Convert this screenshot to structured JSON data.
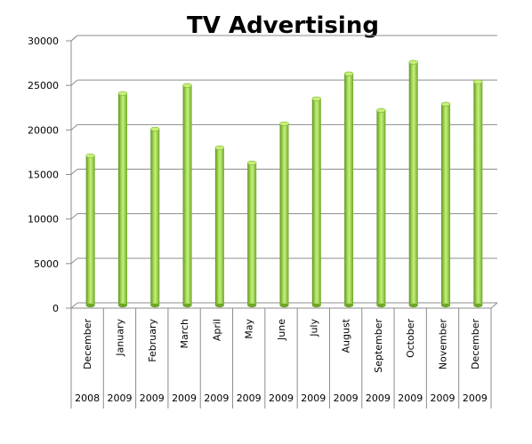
{
  "chart_data": {
    "type": "bar",
    "title": "TV Advertising",
    "categories": [
      "December",
      "January",
      "February",
      "March",
      "April",
      "May",
      "June",
      "July",
      "August",
      "September",
      "October",
      "November",
      "December"
    ],
    "years": [
      "2008",
      "2009",
      "2009",
      "2009",
      "2009",
      "2009",
      "2009",
      "2009",
      "2009",
      "2009",
      "2009",
      "2009",
      "2009"
    ],
    "values": [
      16800,
      23800,
      19800,
      24700,
      17700,
      16000,
      20400,
      23200,
      26000,
      21900,
      27300,
      22600,
      25100
    ],
    "ylim": [
      0,
      30000
    ],
    "yticks": [
      "0",
      "5000",
      "10000",
      "15000",
      "20000",
      "25000",
      "30000"
    ],
    "grid": true,
    "legend": "none",
    "colors": {
      "bar": "#8cc63f",
      "bar_dark": "#5a8a1a",
      "bar_light": "#c8f07a",
      "grid": "#8c8c8c"
    }
  }
}
